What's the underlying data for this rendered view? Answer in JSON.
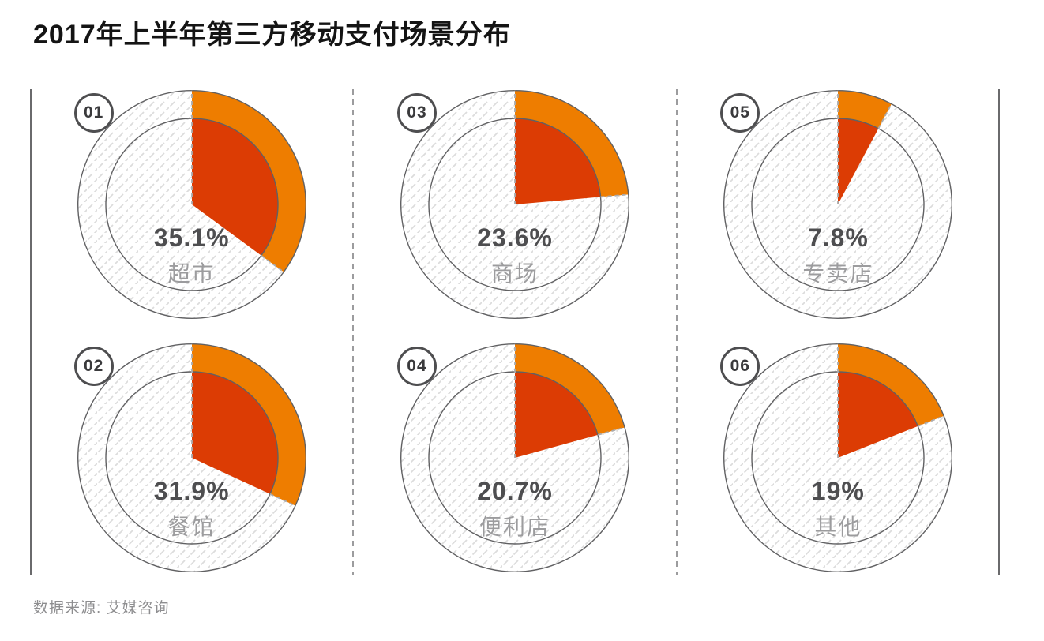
{
  "page": {
    "title": "2017年上半年第三方移动支付场景分布",
    "source": "数据来源: 艾媒咨询"
  },
  "colors": {
    "slice_red": "#dc3c04",
    "ring_orange": "#ee7d00",
    "circle_stroke": "#616163",
    "dashed_line": "#aaaaac",
    "hatch": "#dcdcdc",
    "pct_text": "#4e4e50",
    "label_text": "#9c9c9e"
  },
  "chart_data": {
    "type": "pie",
    "title": "2017年上半年第三方移动支付场景分布",
    "unit": "%",
    "value_range": [
      0,
      100
    ],
    "start_angle": "12-oclock",
    "direction": "clockwise",
    "legend_position": "inside-center",
    "grid": false,
    "layout": "3 columns x 2 rows of individual donut-pie gauges; column order [01,02],[03,04],[05,06]",
    "items": [
      {
        "index": "01",
        "label": "超市",
        "value": 35.1,
        "display": "35.1%"
      },
      {
        "index": "02",
        "label": "餐馆",
        "value": 31.9,
        "display": "31.9%"
      },
      {
        "index": "03",
        "label": "商场",
        "value": 23.6,
        "display": "23.6%"
      },
      {
        "index": "04",
        "label": "便利店",
        "value": 20.7,
        "display": "20.7%"
      },
      {
        "index": "05",
        "label": "专卖店",
        "value": 7.8,
        "display": "7.8%"
      },
      {
        "index": "06",
        "label": "其他",
        "value": 19,
        "display": "19%"
      }
    ],
    "source": "数据来源: 艾媒咨询"
  }
}
